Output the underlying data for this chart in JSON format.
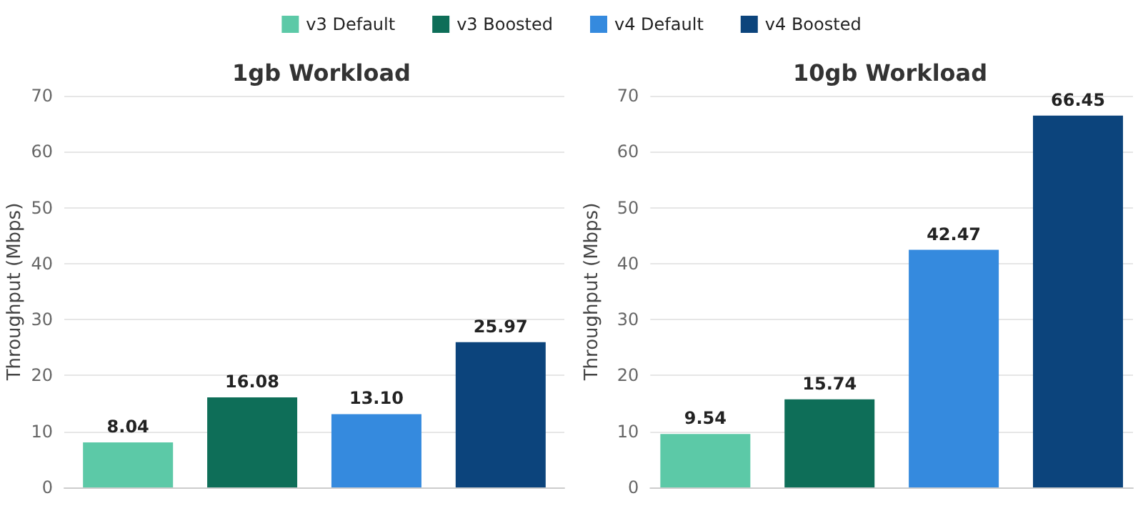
{
  "chart_data": [
    {
      "type": "bar",
      "title": "1gb Workload",
      "ylabel": "Throughput (Mbps)",
      "categories": [
        null
      ],
      "series": [
        {
          "name": "v3 Default",
          "color": "#5cc9a7",
          "values": [
            8.04
          ],
          "value_labels": [
            "8.04"
          ]
        },
        {
          "name": "v3 Boosted",
          "color": "#0e6e58",
          "values": [
            16.08
          ],
          "value_labels": [
            "16.08"
          ]
        },
        {
          "name": "v4 Default",
          "color": "#358ade",
          "values": [
            13.1
          ],
          "value_labels": [
            "13.10"
          ]
        },
        {
          "name": "v4 Boosted",
          "color": "#0c447c",
          "values": [
            25.97
          ],
          "value_labels": [
            "25.97"
          ]
        }
      ],
      "ylim": [
        0,
        70
      ],
      "yticks": [
        0,
        10,
        20,
        30,
        40,
        50,
        60,
        70
      ],
      "grid": "y",
      "legend": "top"
    },
    {
      "type": "bar",
      "title": "10gb Workload",
      "ylabel": "Throughput (Mbps)",
      "categories": [
        null
      ],
      "series": [
        {
          "color": "#5cc9a7",
          "values": [
            9.54
          ],
          "value_labels": [
            "9.54"
          ]
        },
        {
          "color": "#0e6e58",
          "values": [
            15.74
          ],
          "value_labels": [
            "15.74"
          ]
        },
        {
          "color": "#358ade",
          "values": [
            42.47
          ],
          "value_labels": [
            "42.47"
          ]
        },
        {
          "color": "#0c447c",
          "values": [
            66.45
          ],
          "value_labels": [
            "66.45"
          ]
        }
      ],
      "ylim": [
        0,
        70
      ],
      "yticks": [
        0,
        10,
        20,
        30,
        40,
        50,
        60,
        70
      ],
      "grid": "y",
      "legend": false
    }
  ]
}
